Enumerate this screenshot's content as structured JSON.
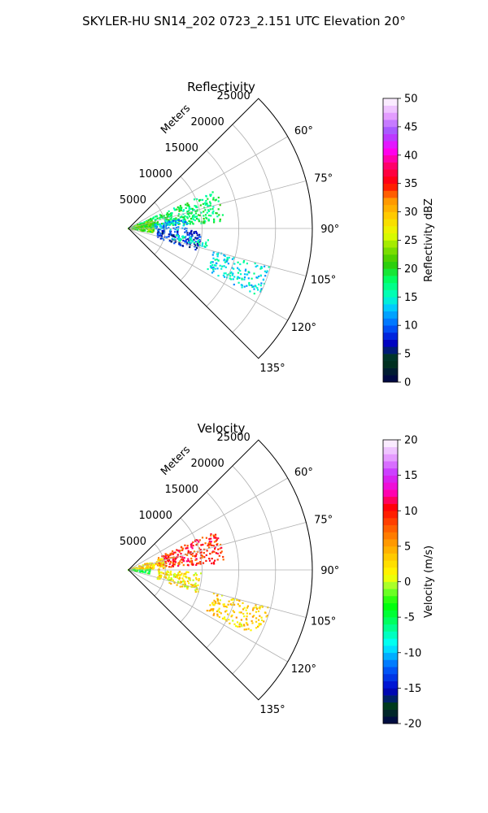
{
  "figure": {
    "title": "SKYLER-HU  SN14_202  0723_2.151 UTC Elevation 20°"
  },
  "chart_data": [
    {
      "type": "polar-sector",
      "title": "Reflectivity",
      "range_label": "Meters",
      "range_ticks": [
        5000,
        10000,
        15000,
        20000,
        25000
      ],
      "range_max": 25000,
      "azimuth_range_deg": [
        45,
        135
      ],
      "azimuth_ticks_deg": [
        60,
        75,
        90,
        105,
        120,
        135
      ],
      "grid": true,
      "colorbar": {
        "label": "Reflectivity dBZ",
        "min": 0,
        "max": 50,
        "ticks": [
          0,
          5,
          10,
          15,
          20,
          25,
          30,
          35,
          40,
          45,
          50
        ],
        "colormap": "pyart_NWSRef"
      },
      "echo_regions": [
        {
          "az_range_deg": [
            66,
            86
          ],
          "range_m": [
            0,
            13000
          ],
          "value": 18
        },
        {
          "az_range_deg": [
            80,
            92
          ],
          "range_m": [
            3000,
            8000
          ],
          "value": 12
        },
        {
          "az_range_deg": [
            92,
            108
          ],
          "range_m": [
            4000,
            10000
          ],
          "value": 8
        },
        {
          "az_range_deg": [
            98,
            104
          ],
          "range_m": [
            6000,
            11000
          ],
          "value": 15
        },
        {
          "az_range_deg": [
            105,
            118
          ],
          "range_m": [
            12000,
            20000
          ],
          "value": 14
        },
        {
          "az_range_deg": [
            70,
            100
          ],
          "range_m": [
            0,
            3500
          ],
          "value": 22
        }
      ]
    },
    {
      "type": "polar-sector",
      "title": "Velocity",
      "range_label": "Meters",
      "range_ticks": [
        5000,
        10000,
        15000,
        20000,
        25000
      ],
      "range_max": 25000,
      "azimuth_range_deg": [
        45,
        135
      ],
      "azimuth_ticks_deg": [
        60,
        75,
        90,
        105,
        120,
        135
      ],
      "grid": true,
      "colorbar": {
        "label": "Velocity (m/s)",
        "min": -20,
        "max": 20,
        "ticks": [
          -20,
          -15,
          -10,
          -5,
          0,
          5,
          10,
          15,
          20
        ],
        "colormap": "pyart_BuDRd18"
      },
      "echo_regions": [
        {
          "az_range_deg": [
            66,
            86
          ],
          "range_m": [
            4000,
            13000
          ],
          "value": 9
        },
        {
          "az_range_deg": [
            70,
            90
          ],
          "range_m": [
            0,
            5000
          ],
          "value": 3
        },
        {
          "az_range_deg": [
            92,
            108
          ],
          "range_m": [
            4000,
            10000
          ],
          "value": 2
        },
        {
          "az_range_deg": [
            105,
            118
          ],
          "range_m": [
            12000,
            20000
          ],
          "value": 3
        },
        {
          "az_range_deg": [
            88,
            100
          ],
          "range_m": [
            0,
            3000
          ],
          "value": -4
        }
      ]
    }
  ]
}
